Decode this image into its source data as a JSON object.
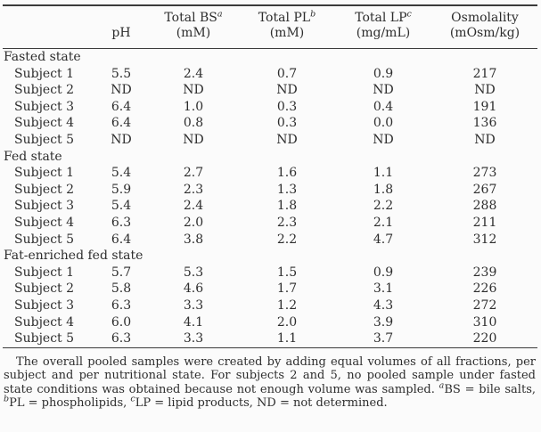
{
  "table": {
    "columns": [
      {
        "line1": "",
        "sup": "",
        "line2": ""
      },
      {
        "line1": "",
        "sup": "",
        "line2": "pH"
      },
      {
        "line1": "Total BS",
        "sup": "a",
        "line2": "(mM)"
      },
      {
        "line1": "Total PL",
        "sup": "b",
        "line2": "(mM)"
      },
      {
        "line1": "Total LP",
        "sup": "c",
        "line2": "(mg/mL)"
      },
      {
        "line1": "Osmolality",
        "sup": "",
        "line2": "(mOsm/kg)"
      }
    ],
    "sections": [
      {
        "name": "Fasted state",
        "rows": [
          {
            "label": "Subject 1",
            "values": [
              "5.5",
              "2.4",
              "0.7",
              "0.9",
              "217"
            ]
          },
          {
            "label": "Subject 2",
            "values": [
              "ND",
              "ND",
              "ND",
              "ND",
              "ND"
            ]
          },
          {
            "label": "Subject 3",
            "values": [
              "6.4",
              "1.0",
              "0.3",
              "0.4",
              "191"
            ]
          },
          {
            "label": "Subject 4",
            "values": [
              "6.4",
              "0.8",
              "0.3",
              "0.0",
              "136"
            ]
          },
          {
            "label": "Subject 5",
            "values": [
              "ND",
              "ND",
              "ND",
              "ND",
              "ND"
            ]
          }
        ]
      },
      {
        "name": "Fed state",
        "rows": [
          {
            "label": "Subject 1",
            "values": [
              "5.4",
              "2.7",
              "1.6",
              "1.1",
              "273"
            ]
          },
          {
            "label": "Subject 2",
            "values": [
              "5.9",
              "2.3",
              "1.3",
              "1.8",
              "267"
            ]
          },
          {
            "label": "Subject 3",
            "values": [
              "5.4",
              "2.4",
              "1.8",
              "2.2",
              "288"
            ]
          },
          {
            "label": "Subject 4",
            "values": [
              "6.3",
              "2.0",
              "2.3",
              "2.1",
              "211"
            ]
          },
          {
            "label": "Subject 5",
            "values": [
              "6.4",
              "3.8",
              "2.2",
              "4.7",
              "312"
            ]
          }
        ]
      },
      {
        "name": "Fat-enriched fed state",
        "rows": [
          {
            "label": "Subject 1",
            "values": [
              "5.7",
              "5.3",
              "1.5",
              "0.9",
              "239"
            ]
          },
          {
            "label": "Subject 2",
            "values": [
              "5.8",
              "4.6",
              "1.7",
              "3.1",
              "226"
            ]
          },
          {
            "label": "Subject 3",
            "values": [
              "6.3",
              "3.3",
              "1.2",
              "4.3",
              "272"
            ]
          },
          {
            "label": "Subject 4",
            "values": [
              "6.0",
              "4.1",
              "2.0",
              "3.9",
              "310"
            ]
          },
          {
            "label": "Subject 5",
            "values": [
              "6.3",
              "3.3",
              "1.1",
              "3.7",
              "220"
            ]
          }
        ]
      }
    ]
  },
  "footnote": {
    "segments": [
      {
        "text": "The overall pooled samples were created by adding equal volumes of all fractions, per subject and per nutritional state. For subjects 2 and 5, no pooled sample under fasted state conditions was obtained because not enough volume was sampled. "
      },
      {
        "sup": "a"
      },
      {
        "text": "BS = bile salts, "
      },
      {
        "sup": "b"
      },
      {
        "text": "PL = phospholipids, "
      },
      {
        "sup": "c"
      },
      {
        "text": "LP = lipid products, ND = not determined."
      }
    ]
  },
  "colors": {
    "text": "#2d2d2d",
    "rule": "#3b3b3b",
    "background": "#fbfbfb"
  }
}
